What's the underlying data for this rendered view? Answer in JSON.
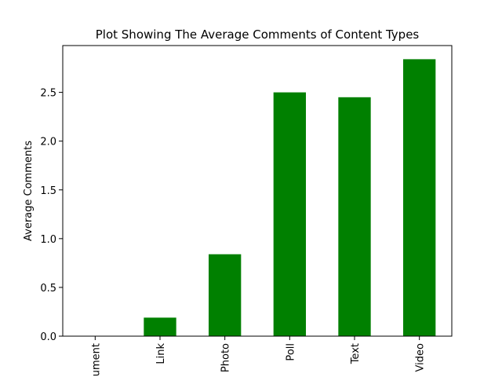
{
  "chart_data": {
    "type": "bar",
    "title": "Plot Showing The Average Comments of Content Types",
    "xlabel": "",
    "ylabel": "Average Comments",
    "categories": [
      "Document",
      "Link",
      "Photo",
      "Poll",
      "Text",
      "Video"
    ],
    "values": [
      0.0,
      0.19,
      0.84,
      2.5,
      2.45,
      2.84
    ],
    "ylim": [
      0,
      2.98
    ],
    "yticks": [
      0.0,
      0.5,
      1.0,
      1.5,
      2.0,
      2.5
    ],
    "ytick_labels": [
      "0.0",
      "0.5",
      "1.0",
      "1.5",
      "2.0",
      "2.5"
    ],
    "bar_color": "#008000",
    "grid": false,
    "legend": "none"
  }
}
